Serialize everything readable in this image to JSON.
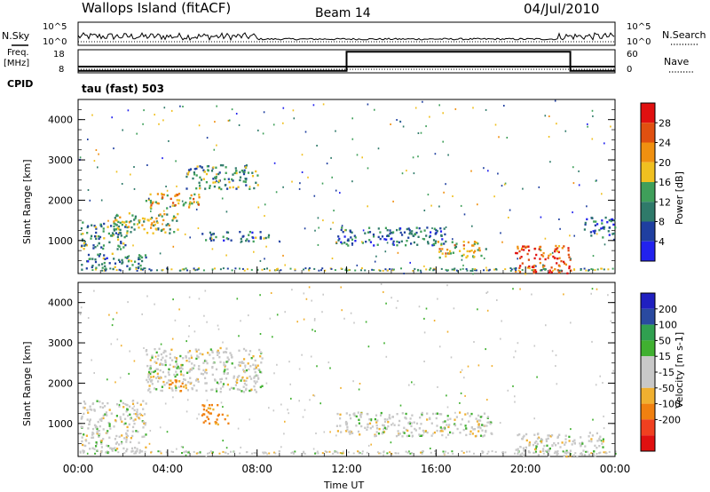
{
  "header": {
    "station": "Wallops Island (fitACF)",
    "beam": "Beam 14",
    "date": "04/Jul/2010"
  },
  "side_labels": {
    "nsky": "N.Sky",
    "freq_top": "Freq.",
    "freq_unit": "[MHz]",
    "cpid": "CPID",
    "nsearch": "N.Search",
    "nave": "Nave"
  },
  "cpid_text": "tau (fast) 503",
  "colors": {
    "power_scale": [
      "#2222ee",
      "#1f3fa0",
      "#2f7a6a",
      "#3f9f5a",
      "#f0c020",
      "#f09010",
      "#e05010",
      "#e01010"
    ],
    "velocity_scale": [
      "#e01010",
      "#f04020",
      "#f08010",
      "#f0b030",
      "#c8c8c8",
      "#c8c8c8",
      "#40b030",
      "#30a050",
      "#2a4aa0",
      "#2020c0"
    ]
  },
  "chart_data": [
    {
      "type": "line",
      "name": "noise-panel",
      "ylabel_left": "N.Sky",
      "ylabel_right": "N.Search",
      "left_ticks": [
        "10^5",
        "10^0"
      ],
      "right_ticks": [
        "10^5",
        "10^0"
      ]
    },
    {
      "type": "line",
      "name": "freq-panel",
      "ylabel_left": "Freq. [MHz]",
      "ylabel_right": "Nave",
      "left_ticks": [
        "18",
        "8"
      ],
      "right_ticks": [
        "60",
        "0"
      ],
      "nave_series": {
        "x_hours": [
          0,
          12,
          12,
          22,
          22,
          24
        ],
        "values": [
          5,
          5,
          55,
          55,
          5,
          5
        ]
      }
    },
    {
      "type": "heatmap",
      "name": "power-panel",
      "ylabel": "Slant Range [km]",
      "y_ticks": [
        "4000",
        "3000",
        "2000",
        "1000"
      ],
      "colorbar_label": "Power [dB]",
      "colorbar_ticks": [
        "28",
        "24",
        "20",
        "16",
        "12",
        "8",
        "4"
      ],
      "zlim": [
        0,
        32
      ],
      "ylim": [
        180,
        4500
      ],
      "xlim_hours": [
        0,
        24
      ],
      "regions": [
        {
          "t0": 0.1,
          "t1": 2.2,
          "r0": 800,
          "r1": 1500,
          "v": 12
        },
        {
          "t0": 0.1,
          "t1": 3.0,
          "r0": 300,
          "r1": 700,
          "v": 10
        },
        {
          "t0": 1.5,
          "t1": 4.5,
          "r0": 1200,
          "r1": 1700,
          "v": 16
        },
        {
          "t0": 3.0,
          "t1": 5.5,
          "r0": 1800,
          "r1": 2200,
          "v": 20
        },
        {
          "t0": 4.8,
          "t1": 8.0,
          "r0": 2300,
          "r1": 2900,
          "v": 12
        },
        {
          "t0": 5.5,
          "t1": 8.5,
          "r0": 1000,
          "r1": 1250,
          "v": 10
        },
        {
          "t0": 11.5,
          "t1": 16.5,
          "r0": 900,
          "r1": 1350,
          "v": 9
        },
        {
          "t0": 16.0,
          "t1": 18.2,
          "r0": 600,
          "r1": 1000,
          "v": 18
        },
        {
          "t0": 19.5,
          "t1": 22.0,
          "r0": 200,
          "r1": 900,
          "v": 26
        },
        {
          "t0": 22.5,
          "t1": 24.0,
          "r0": 1100,
          "r1": 1600,
          "v": 8
        }
      ]
    },
    {
      "type": "heatmap",
      "name": "velocity-panel",
      "ylabel": "Slant Range [km]",
      "y_ticks": [
        "4000",
        "3000",
        "2000",
        "1000"
      ],
      "colorbar_label": "Velocity [m s-1]",
      "colorbar_ticks": [
        "200",
        "100",
        "50",
        "15",
        "-15",
        "-50",
        "-100",
        "-200"
      ],
      "ylim": [
        180,
        4500
      ],
      "xlim_hours": [
        0,
        24
      ],
      "x_ticks": [
        "00:00",
        "04:00",
        "08:00",
        "12:00",
        "16:00",
        "20:00",
        "00:00"
      ],
      "xlabel": "Time UT",
      "regions": [
        {
          "t0": 0.1,
          "t1": 3.0,
          "r0": 300,
          "r1": 1600,
          "v": 0
        },
        {
          "t0": 3.0,
          "t1": 8.2,
          "r0": 1800,
          "r1": 2900,
          "v": 0
        },
        {
          "t0": 5.5,
          "t1": 6.7,
          "r0": 1000,
          "r1": 1500,
          "v": -60
        },
        {
          "t0": 4.0,
          "t1": 5.0,
          "r0": 1800,
          "r1": 2100,
          "v": -40
        },
        {
          "t0": 11.5,
          "t1": 18.5,
          "r0": 700,
          "r1": 1300,
          "v": 0
        },
        {
          "t0": 19.5,
          "t1": 23.5,
          "r0": 200,
          "r1": 800,
          "v": 0
        }
      ]
    }
  ]
}
